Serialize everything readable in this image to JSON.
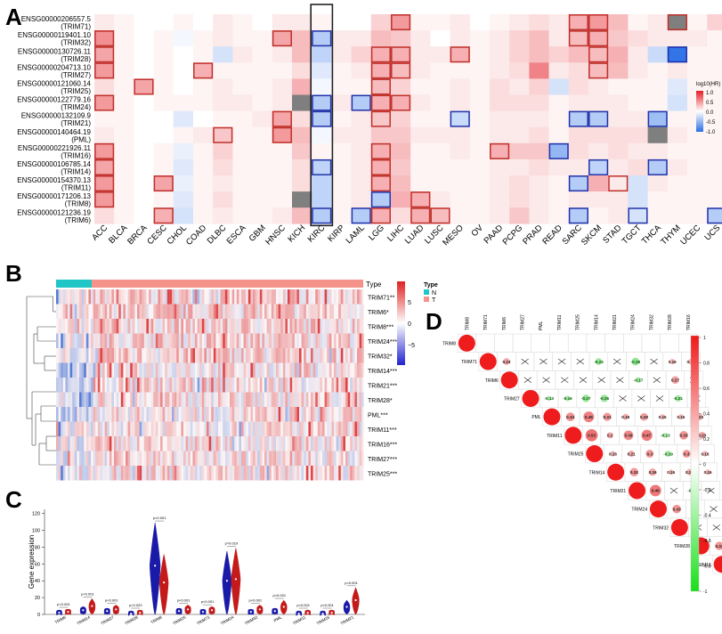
{
  "panel_letters": {
    "a": "A",
    "b": "B",
    "c": "C",
    "d": "D"
  },
  "colors": {
    "red": "#d7191c",
    "blue": "#2c5fd0",
    "white": "#ffffff",
    "gray": "#7f7f7f",
    "box": "#c0302a",
    "boxblue": "#2233aa",
    "teal": "#20c5c5",
    "salmon": "#f5928a"
  },
  "chart_data": [
    {
      "panel": "A",
      "type": "heatmap",
      "title": "",
      "legend_title": "log10(HR)",
      "legend_ticks": [
        "1.0",
        "0.5",
        "0.0",
        "-0.5",
        "-1.0"
      ],
      "rows": [
        {
          "id": "ENSG00000206557.5",
          "name": "(TRIM71)"
        },
        {
          "id": "ENSG00000119401.10",
          "name": "(TRIM32)"
        },
        {
          "id": "ENSG00000130726.11",
          "name": "(TRIM28)"
        },
        {
          "id": "ENSG00000204713.10",
          "name": "(TRIM27)"
        },
        {
          "id": "ENSG00000121060.14",
          "name": "(TRIM25)"
        },
        {
          "id": "ENSG00000122779.16",
          "name": "(TRIM24)"
        },
        {
          "id": "ENSG00000132109.9",
          "name": "(TRIM21)"
        },
        {
          "id": "ENSG00000140464.19",
          "name": "(PML)"
        },
        {
          "id": "ENSG00000221926.11",
          "name": "(TRIM16)"
        },
        {
          "id": "ENSG00000106785.14",
          "name": "(TRIM14)"
        },
        {
          "id": "ENSG00000154370.13",
          "name": "(TRIM11)"
        },
        {
          "id": "ENSG00000171206.13",
          "name": "(TRIM8)"
        },
        {
          "id": "ENSG00000121236.19",
          "name": "(TRIM6)"
        }
      ],
      "columns": [
        "ACC",
        "BLCA",
        "BRCA",
        "CESC",
        "CHOL",
        "COAD",
        "DLBC",
        "ESCA",
        "GBM",
        "HNSC",
        "KICH",
        "KIRC",
        "KIRP",
        "LAML",
        "LGG",
        "LIHC",
        "LUAD",
        "LUSC",
        "MESO",
        "OV",
        "PAAD",
        "PCPG",
        "PRAD",
        "READ",
        "SARC",
        "SKCM",
        "STAD",
        "TGCT",
        "THCA",
        "THYM",
        "UCEC",
        "UCS",
        "UVM"
      ],
      "highlight_column": "KIRC",
      "values": [
        [
          0.1,
          0.05,
          0,
          0,
          0.05,
          0,
          0.1,
          0.05,
          0,
          0.1,
          0.1,
          0.05,
          0,
          0,
          0.2,
          0.45,
          0.05,
          0.05,
          0.1,
          0,
          0.05,
          0.1,
          0.15,
          0.1,
          0.35,
          0.45,
          0.3,
          0.05,
          0.1,
          null,
          0.05,
          0.2,
          0.4
        ],
        [
          0.5,
          0.05,
          0,
          0.05,
          -0.05,
          0.05,
          0.1,
          0.05,
          0.05,
          0.4,
          0.3,
          -0.35,
          0.1,
          0.1,
          0.3,
          0.25,
          0.1,
          0,
          0.1,
          0.05,
          0.1,
          0.2,
          0.3,
          0.1,
          0.3,
          0.35,
          0.25,
          0.15,
          0.1,
          0.1,
          0.1,
          0.05,
          0.25
        ],
        [
          0.4,
          0.05,
          0,
          0.05,
          0,
          0.05,
          -0.2,
          0.1,
          0.05,
          0.1,
          0.3,
          -0.3,
          0.1,
          0.2,
          0.35,
          0.35,
          0.1,
          0.1,
          0.35,
          0.05,
          0.1,
          0.2,
          0.3,
          0.2,
          0.3,
          0.3,
          0.35,
          0.1,
          -0.25,
          -0.95,
          0.05,
          0.05,
          -0.45
        ],
        [
          0.45,
          0.05,
          0,
          0.05,
          0,
          0.35,
          0.05,
          0.05,
          0.05,
          0.05,
          0.15,
          -0.15,
          0.05,
          0.1,
          0.35,
          0.3,
          0.1,
          0.05,
          0.05,
          0.05,
          0.1,
          0.15,
          0.55,
          0.1,
          0.15,
          0.3,
          0.3,
          0.1,
          0.05,
          0.1,
          0.05,
          0.05,
          0.1
        ],
        [
          0.15,
          0.05,
          0.4,
          0.05,
          0,
          0.05,
          0.1,
          0.05,
          0.05,
          0.1,
          0.35,
          -0.05,
          0.05,
          0.05,
          0.3,
          0.2,
          0.05,
          0.05,
          0.1,
          0.05,
          0.15,
          0.1,
          0.2,
          -0.2,
          0.15,
          0.1,
          0.05,
          0.05,
          0.05,
          -0.15,
          0.05,
          0.05,
          0.05
        ],
        [
          0.45,
          0.05,
          0,
          0.05,
          0.05,
          0.05,
          0.1,
          0.1,
          0.05,
          0.1,
          null,
          -0.35,
          0.1,
          -0.35,
          0.35,
          0.35,
          0.1,
          0.05,
          0.1,
          0.05,
          0.15,
          0.15,
          0.15,
          0.05,
          0.1,
          0.1,
          0.1,
          0.05,
          0.05,
          -0.2,
          0.05,
          0.05,
          0.1
        ],
        [
          0.05,
          0.05,
          0,
          0,
          -0.15,
          0,
          0.05,
          0.05,
          0.1,
          0.4,
          0.15,
          -0.35,
          0.05,
          0.1,
          0.25,
          0.2,
          0.05,
          0.05,
          -0.25,
          0.05,
          0.1,
          0.1,
          0.1,
          0.05,
          -0.35,
          -0.35,
          0.1,
          0.1,
          -0.45,
          0.05,
          0.05,
          0.05,
          0.35
        ],
        [
          0.1,
          0.05,
          0,
          0,
          0.05,
          0.1,
          0.25,
          0.05,
          0.05,
          0.45,
          0.3,
          -0.05,
          0.1,
          0.1,
          0.25,
          0.25,
          0.1,
          0.1,
          0.1,
          0.05,
          0.1,
          0.1,
          0.15,
          0.05,
          0.15,
          0.15,
          0.15,
          0.15,
          null,
          0.1,
          0.05,
          0.05,
          0.1
        ],
        [
          0.45,
          0.05,
          0,
          0.05,
          -0.1,
          0.05,
          0.2,
          0.05,
          0.05,
          0.05,
          0.25,
          0.05,
          0.05,
          0.1,
          0.35,
          0.3,
          0.05,
          0.05,
          0.1,
          0.05,
          0.35,
          0.25,
          0.25,
          -0.5,
          0.15,
          0.1,
          0.15,
          0.1,
          0.1,
          0.05,
          0.05,
          0.05,
          0.4
        ],
        [
          0.4,
          0.05,
          0,
          0.05,
          -0.15,
          0.05,
          0.15,
          0.05,
          0.05,
          0.05,
          0.15,
          -0.3,
          0.05,
          0.1,
          0.35,
          0.25,
          0.05,
          0.05,
          0.05,
          0.05,
          0.1,
          0.1,
          0.15,
          0.1,
          0.1,
          -0.3,
          0.1,
          0.15,
          -0.35,
          0.1,
          0.05,
          0.05,
          0.05
        ],
        [
          0.45,
          0.05,
          0,
          0.4,
          -0.1,
          0.05,
          0.1,
          0.05,
          0.05,
          0.05,
          0.15,
          -0.3,
          0.05,
          0.1,
          0.35,
          0.3,
          0.05,
          0.05,
          0.05,
          0.05,
          0.1,
          0.15,
          0.1,
          0.05,
          -0.35,
          0.35,
          0.1,
          -0.2,
          0.1,
          0.05,
          0.05,
          0.05,
          0.05
        ],
        [
          0.45,
          0.05,
          0,
          0.05,
          -0.15,
          0.05,
          0.15,
          0.05,
          0.05,
          0.05,
          null,
          -0.3,
          0.05,
          0.1,
          -0.35,
          0.35,
          0.35,
          0.1,
          0.05,
          0.05,
          0.1,
          0.15,
          0.1,
          0.05,
          0.1,
          0.1,
          0.1,
          -0.2,
          0.05,
          0.05,
          0.05,
          0.05,
          0.05
        ],
        [
          0.15,
          0.05,
          0,
          0.35,
          -0.2,
          0.05,
          0.1,
          0.05,
          0.05,
          0.1,
          0.3,
          -0.35,
          0.05,
          -0.35,
          0.35,
          0.15,
          0.35,
          0.3,
          0.05,
          0.05,
          0.1,
          0.25,
          0.1,
          0.05,
          -0.35,
          0.05,
          0.1,
          -0.2,
          0.05,
          0.05,
          0.05,
          -0.35,
          0.3
        ]
      ],
      "significant": [
        [
          [
            0,
            15
          ],
          [
            0,
            24
          ],
          [
            0,
            25
          ],
          [
            0,
            29
          ],
          [
            0,
            32
          ]
        ],
        [
          [
            1,
            0
          ],
          [
            1,
            9
          ],
          [
            1,
            11
          ],
          [
            1,
            24
          ],
          [
            1,
            25
          ]
        ],
        [
          [
            2,
            0
          ],
          [
            2,
            14
          ],
          [
            2,
            15
          ],
          [
            2,
            18
          ],
          [
            2,
            25
          ],
          [
            2,
            29
          ],
          [
            2,
            32
          ]
        ],
        [
          [
            3,
            0
          ],
          [
            3,
            5
          ],
          [
            3,
            14
          ],
          [
            3,
            15
          ],
          [
            3,
            25
          ]
        ],
        [
          [
            4,
            2
          ],
          [
            4,
            14
          ]
        ],
        [
          [
            5,
            0
          ],
          [
            5,
            11
          ],
          [
            5,
            13
          ],
          [
            5,
            14
          ],
          [
            5,
            15
          ]
        ],
        [
          [
            6,
            9
          ],
          [
            6,
            11
          ],
          [
            6,
            14
          ],
          [
            6,
            18
          ],
          [
            6,
            24
          ],
          [
            6,
            25
          ],
          [
            6,
            28
          ],
          [
            6,
            32
          ]
        ],
        [
          [
            7,
            6
          ],
          [
            7,
            9
          ]
        ],
        [
          [
            8,
            0
          ],
          [
            8,
            14
          ],
          [
            8,
            20
          ],
          [
            8,
            23
          ],
          [
            8,
            32
          ]
        ],
        [
          [
            9,
            0
          ],
          [
            9,
            11
          ],
          [
            9,
            14
          ],
          [
            9,
            25
          ],
          [
            9,
            28
          ]
        ],
        [
          [
            10,
            0
          ],
          [
            10,
            3
          ],
          [
            10,
            14
          ],
          [
            10,
            24
          ],
          [
            10,
            26
          ]
        ],
        [
          [
            11,
            0
          ],
          [
            11,
            14
          ],
          [
            11,
            16
          ]
        ],
        [
          [
            12,
            3
          ],
          [
            12,
            11
          ],
          [
            12,
            13
          ],
          [
            12,
            14
          ],
          [
            12,
            16
          ],
          [
            12,
            17
          ],
          [
            12,
            24
          ],
          [
            12,
            27
          ],
          [
            12,
            31
          ],
          [
            12,
            32
          ]
        ]
      ]
    },
    {
      "panel": "B",
      "type": "heatmap",
      "legend_type_title": "Type",
      "legend_type_items": [
        "N",
        "T"
      ],
      "scale_ticks": [
        "5",
        "0",
        "−5"
      ],
      "top_bar_label": "Type",
      "genes": [
        "TRIM71**",
        "TRIM6*",
        "TRIM8***",
        "TRIM24***",
        "TRIM32*",
        "TRIM14***",
        "TRIM21***",
        "TRIM28*",
        "PML***",
        "TRIM11***",
        "TRIM16***",
        "TRIM27***",
        "TRIM25***"
      ]
    },
    {
      "panel": "C",
      "type": "violin",
      "ylabel": "Gene expression",
      "yticks": [
        0,
        20,
        40,
        60,
        80,
        100,
        120
      ],
      "ylim": [
        0,
        125
      ],
      "groups": [
        {
          "label": "TRIM6",
          "p": "p<0.001",
          "n_median": 2,
          "t_median": 3
        },
        {
          "label": "TRIM14",
          "p": "p<0.001",
          "n_median": 5,
          "t_median": 10
        },
        {
          "label": "TRIM27",
          "p": "p<0.001",
          "n_median": 4,
          "t_median": 6
        },
        {
          "label": "TRIM28",
          "p": "p=0.023",
          "n_median": 1,
          "t_median": 2
        },
        {
          "label": "TRIM8",
          "p": "p<0.001",
          "n_median": 58,
          "t_median": 38
        },
        {
          "label": "TRIM25",
          "p": "p<0.001",
          "n_median": 4,
          "t_median": 6
        },
        {
          "label": "TRIM71",
          "p": "p<0.001",
          "n_median": 3,
          "t_median": 5
        },
        {
          "label": "TRIM24",
          "p": "p=0.019",
          "n_median": 40,
          "t_median": 42
        },
        {
          "label": "TRIM32",
          "p": "p<0.001",
          "n_median": 3,
          "t_median": 6
        },
        {
          "label": "PML",
          "p": "p<0.001",
          "n_median": 4,
          "t_median": 9
        },
        {
          "label": "TRIM11",
          "p": "p<0.001",
          "n_median": 1,
          "t_median": 2
        },
        {
          "label": "TRIM16",
          "p": "p<0.001",
          "n_median": 1,
          "t_median": 2
        },
        {
          "label": "TRIM21",
          "p": "p<0.001",
          "n_median": 9,
          "t_median": 17
        }
      ]
    },
    {
      "panel": "D",
      "type": "heatmap",
      "subtype": "correlation",
      "labels": [
        "TRIM8",
        "TRIM71",
        "TRIM6",
        "TRIM27",
        "PML",
        "TRIM11",
        "TRIM25",
        "TRIM14",
        "TRIM21",
        "TRIM24",
        "TRIM32",
        "TRIM28",
        "TRIM16"
      ],
      "colorbar_ticks": [
        "1",
        "0.8",
        "0.6",
        "0.4",
        "0.2",
        "0",
        "-0.2",
        "-0.4",
        "-0.6",
        "-0.8",
        "-1"
      ],
      "upper": [
        [
          null,
          null,
          null,
          null,
          null,
          null,
          null,
          null,
          null,
          null,
          null,
          null,
          null
        ],
        [
          null,
          null,
          0.23,
          0.01,
          -0.01,
          0.01,
          -0.03,
          -0.23,
          0.02,
          -0.28,
          0.02,
          0.16,
          0.16
        ],
        [
          null,
          null,
          null,
          0.08,
          0.01,
          0.02,
          0.02,
          0.01,
          0.01,
          -0.17,
          0.01,
          0.27,
          0.01
        ],
        [
          null,
          null,
          null,
          null,
          -0.13,
          -0.16,
          -0.27,
          -0.26,
          0.01,
          0.02,
          0.01,
          -0.21,
          0.03
        ],
        [
          null,
          null,
          null,
          null,
          null,
          0.34,
          0.45,
          0.31,
          0.19,
          0.28,
          0.15,
          0.15,
          0.23
        ],
        [
          null,
          null,
          null,
          null,
          null,
          null,
          0.53,
          0.2,
          0.39,
          0.47,
          -0.13,
          0.33,
          0.23
        ],
        [
          null,
          null,
          null,
          null,
          null,
          null,
          null,
          0.16,
          0.21,
          0.3,
          -0.19,
          0.3,
          0.16
        ],
        [
          null,
          null,
          null,
          null,
          null,
          null,
          null,
          null,
          0.32,
          0.26,
          0.15,
          0.21,
          0.16
        ],
        [
          null,
          null,
          null,
          null,
          null,
          null,
          null,
          null,
          null,
          0.49,
          0.01,
          -0.14,
          0.04
        ],
        [
          null,
          null,
          null,
          null,
          null,
          null,
          null,
          null,
          null,
          null,
          0.33,
          0.11,
          0.01
        ],
        [
          null,
          null,
          null,
          null,
          null,
          null,
          null,
          null,
          null,
          null,
          null,
          0.02,
          0.02
        ],
        [
          null,
          null,
          null,
          null,
          null,
          null,
          null,
          null,
          null,
          null,
          null,
          null,
          0.32
        ],
        [
          null,
          null,
          null,
          null,
          null,
          null,
          null,
          null,
          null,
          null,
          null,
          null,
          null
        ]
      ],
      "labels_text": [
        "0.23",
        "-0.16",
        "-0.27",
        "-0.26",
        "-0.23",
        "-0.28",
        "0.16",
        "0.16",
        "-0.17",
        "0.27",
        "-0.21",
        "0.34",
        "0.45",
        "0.31",
        "0.19",
        "0.28",
        "0.15",
        "0.15",
        "0.23",
        "0.53",
        "0.2",
        "0.39",
        "0.47",
        "-0.13",
        "0.33",
        "0.23",
        "0.16",
        "0.21",
        "0.3",
        "-0.19",
        "0.3",
        "0.16",
        "0.32",
        "0.26",
        "0.15",
        "0.21",
        "0.16",
        "0.49",
        "-0.14",
        "0.33",
        "0.32"
      ]
    }
  ]
}
